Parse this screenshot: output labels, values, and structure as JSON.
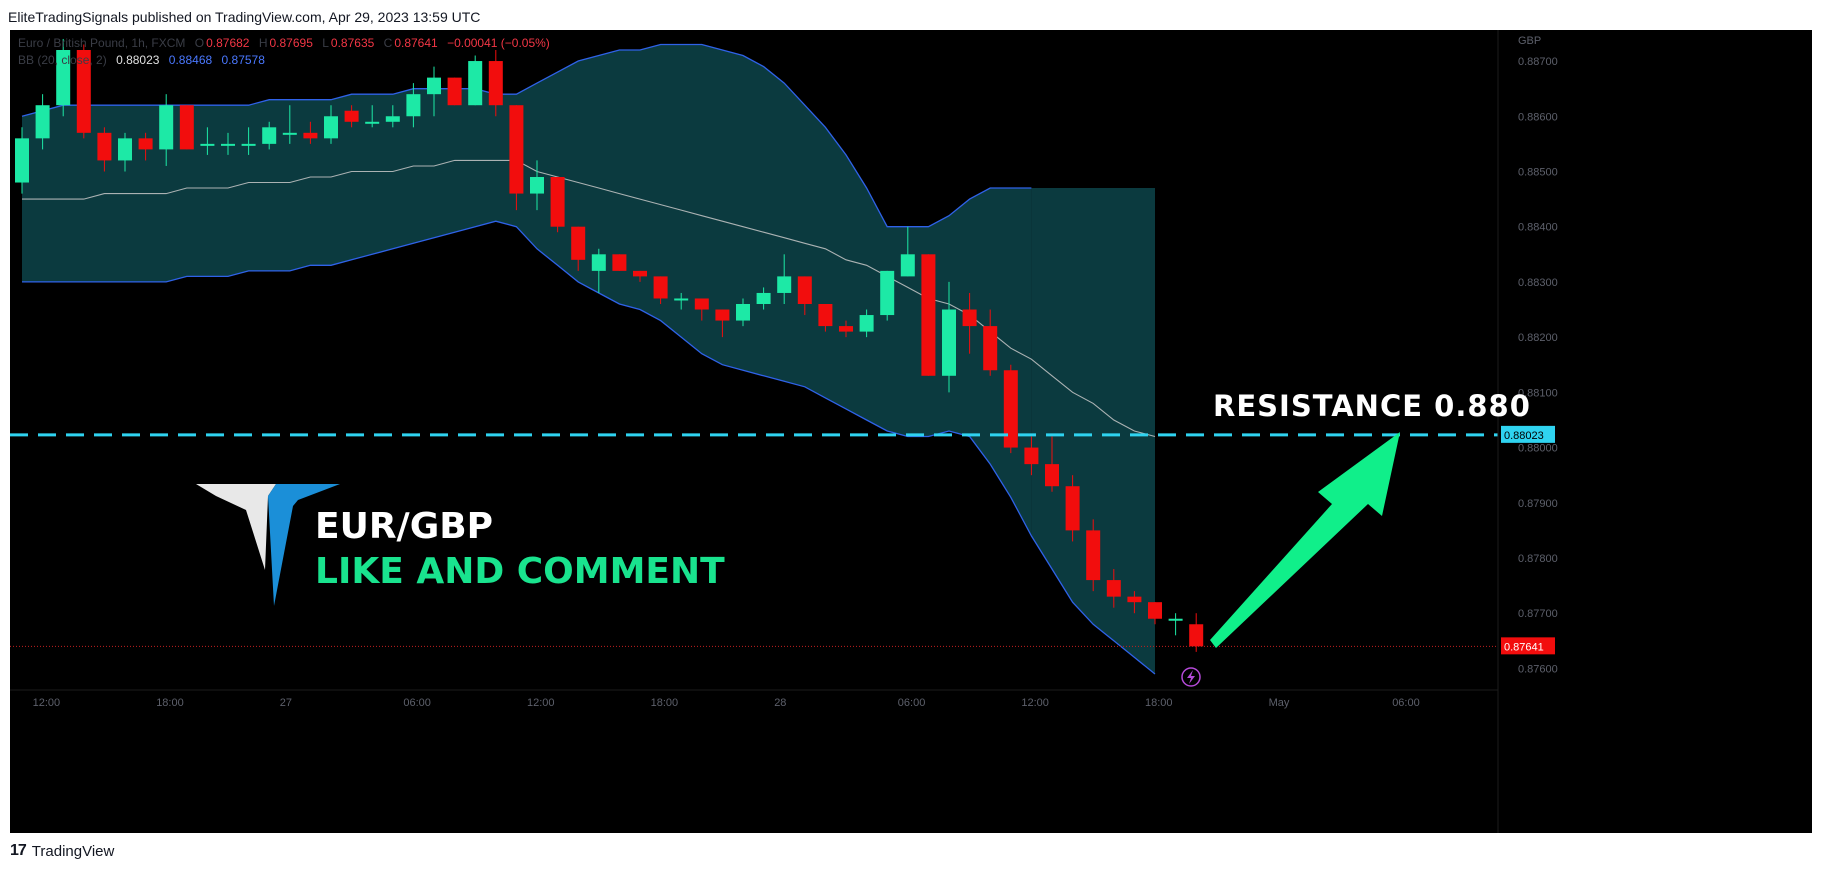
{
  "header": {
    "publisher_line": "EliteTradingSignals published on TradingView.com, Apr 29, 2023 13:59 UTC"
  },
  "footer": {
    "brand": "TradingView",
    "logo_mark": "17"
  },
  "legend": {
    "symbol": "Euro / British Pound, 1h, FXCM",
    "o_label": "O",
    "o": "0.87682",
    "h_label": "H",
    "h": "0.87695",
    "l_label": "L",
    "l": "0.87635",
    "c_label": "C",
    "c": "0.87641",
    "change": "−0.00041 (−0.05%)",
    "bb_label": "BB (20, close, 2)",
    "bb_basis": "0.88023",
    "bb_upper": "0.88468",
    "bb_lower": "0.87578"
  },
  "overlay": {
    "resistance_text": "RESISTANCE  0.880",
    "pair": "EUR/GBP",
    "cta": "LIKE AND COMMENT"
  },
  "colors": {
    "up": "#1de9a6",
    "down": "#f20d0d",
    "band_fill": "#0b3a3f",
    "band_line": "#2f62e8",
    "basis_line": "#c8c8c8",
    "resistance": "#2fd3f0",
    "arrow": "#10ef8a",
    "logo_white": "#e8e8e8",
    "logo_blue": "#1b8fd8",
    "cta": "#19e38e"
  },
  "chart_data": {
    "type": "candlestick",
    "currency": "GBP",
    "ylim": [
      0.8757,
      0.8872
    ],
    "y_ticks": [
      0.887,
      0.886,
      0.885,
      0.884,
      0.883,
      0.882,
      0.881,
      0.88,
      0.879,
      0.878,
      0.877,
      0.876
    ],
    "x_ticks": [
      {
        "label": "12:00",
        "i": 1
      },
      {
        "label": "18:00",
        "i": 7
      },
      {
        "label": "27",
        "i": 13
      },
      {
        "label": "06:00",
        "i": 19
      },
      {
        "label": "12:00",
        "i": 25
      },
      {
        "label": "18:00",
        "i": 31
      },
      {
        "label": "28",
        "i": 37
      },
      {
        "label": "06:00",
        "i": 43
      },
      {
        "label": "12:00",
        "i": 49
      },
      {
        "label": "18:00",
        "i": 55
      },
      {
        "label": "May",
        "i": 61
      },
      {
        "label": "06:00",
        "i": 67
      }
    ],
    "last_price": "0.87641",
    "resistance": {
      "value": 0.88023,
      "label": "0.88023"
    },
    "candles": [
      [
        0.8848,
        0.8858,
        0.8846,
        0.8856
      ],
      [
        0.8856,
        0.8864,
        0.8854,
        0.8862
      ],
      [
        0.8862,
        0.8874,
        0.886,
        0.8872
      ],
      [
        0.8872,
        0.8873,
        0.8856,
        0.8857
      ],
      [
        0.8857,
        0.8858,
        0.885,
        0.8852
      ],
      [
        0.8852,
        0.8857,
        0.885,
        0.8856
      ],
      [
        0.8856,
        0.8857,
        0.8852,
        0.8854
      ],
      [
        0.8854,
        0.8864,
        0.8851,
        0.8862
      ],
      [
        0.8862,
        0.8862,
        0.8854,
        0.8854
      ],
      [
        0.8855,
        0.8858,
        0.8853,
        0.8855
      ],
      [
        0.8855,
        0.8857,
        0.8853,
        0.8855
      ],
      [
        0.8855,
        0.8858,
        0.8853,
        0.8855
      ],
      [
        0.8855,
        0.8859,
        0.8854,
        0.8858
      ],
      [
        0.8857,
        0.8862,
        0.8855,
        0.8857
      ],
      [
        0.8857,
        0.8859,
        0.8855,
        0.8856
      ],
      [
        0.8856,
        0.8862,
        0.8855,
        0.886
      ],
      [
        0.8861,
        0.8862,
        0.8858,
        0.8859
      ],
      [
        0.8859,
        0.8862,
        0.8858,
        0.8859
      ],
      [
        0.8859,
        0.8862,
        0.8858,
        0.886
      ],
      [
        0.886,
        0.8866,
        0.8858,
        0.8864
      ],
      [
        0.8864,
        0.8869,
        0.886,
        0.8867
      ],
      [
        0.8867,
        0.8867,
        0.8862,
        0.8862
      ],
      [
        0.8862,
        0.8871,
        0.8862,
        0.887
      ],
      [
        0.887,
        0.8872,
        0.886,
        0.8862
      ],
      [
        0.8862,
        0.8862,
        0.8843,
        0.8846
      ],
      [
        0.8846,
        0.8852,
        0.8843,
        0.8849
      ],
      [
        0.8849,
        0.8849,
        0.8839,
        0.884
      ],
      [
        0.884,
        0.884,
        0.8832,
        0.8834
      ],
      [
        0.8832,
        0.8836,
        0.8828,
        0.8835
      ],
      [
        0.8835,
        0.8835,
        0.8832,
        0.8832
      ],
      [
        0.8832,
        0.8832,
        0.883,
        0.8831
      ],
      [
        0.8831,
        0.8831,
        0.8826,
        0.8827
      ],
      [
        0.8827,
        0.8828,
        0.8825,
        0.8827
      ],
      [
        0.8827,
        0.8827,
        0.8823,
        0.8825
      ],
      [
        0.8825,
        0.8825,
        0.882,
        0.8823
      ],
      [
        0.8823,
        0.8827,
        0.8822,
        0.8826
      ],
      [
        0.8826,
        0.8829,
        0.8825,
        0.8828
      ],
      [
        0.8828,
        0.8835,
        0.8826,
        0.8831
      ],
      [
        0.8831,
        0.8831,
        0.8824,
        0.8826
      ],
      [
        0.8826,
        0.8826,
        0.8821,
        0.8822
      ],
      [
        0.8822,
        0.8823,
        0.882,
        0.8821
      ],
      [
        0.8821,
        0.8825,
        0.882,
        0.8824
      ],
      [
        0.8824,
        0.8832,
        0.8823,
        0.8832
      ],
      [
        0.8831,
        0.884,
        0.8831,
        0.8835
      ],
      [
        0.8835,
        0.8835,
        0.8813,
        0.8813
      ],
      [
        0.8813,
        0.883,
        0.881,
        0.8825
      ],
      [
        0.8825,
        0.8828,
        0.8817,
        0.8822
      ],
      [
        0.8822,
        0.8825,
        0.8813,
        0.8814
      ],
      [
        0.8814,
        0.8815,
        0.8799,
        0.88
      ],
      [
        0.88,
        0.8802,
        0.8795,
        0.8797
      ],
      [
        0.8797,
        0.8802,
        0.8792,
        0.8793
      ],
      [
        0.8793,
        0.8795,
        0.8783,
        0.8785
      ],
      [
        0.8785,
        0.8787,
        0.8774,
        0.8776
      ],
      [
        0.8776,
        0.8778,
        0.8771,
        0.8773
      ],
      [
        0.8773,
        0.8774,
        0.877,
        0.8772
      ],
      [
        0.8772,
        0.8772,
        0.8768,
        0.8769
      ],
      [
        0.8769,
        0.877,
        0.8766,
        0.8769
      ],
      [
        0.8768,
        0.877,
        0.8763,
        0.8764
      ]
    ],
    "bb_upper": [
      0.886,
      0.8861,
      0.8862,
      0.8862,
      0.8862,
      0.8862,
      0.8862,
      0.8862,
      0.8862,
      0.8862,
      0.8862,
      0.8862,
      0.8863,
      0.8863,
      0.8863,
      0.8863,
      0.8864,
      0.8864,
      0.8864,
      0.8865,
      0.8865,
      0.8865,
      0.8865,
      0.8864,
      0.8864,
      0.8866,
      0.8868,
      0.887,
      0.8871,
      0.8872,
      0.8872,
      0.8873,
      0.8873,
      0.8873,
      0.8872,
      0.8871,
      0.8869,
      0.8866,
      0.8862,
      0.8858,
      0.8853,
      0.8847,
      0.884,
      0.884,
      0.884,
      0.8842,
      0.8845,
      0.8847,
      0.8847,
      0.8847
    ],
    "bb_basis": [
      0.8845,
      0.8845,
      0.8845,
      0.8845,
      0.8846,
      0.8846,
      0.8846,
      0.8846,
      0.8847,
      0.8847,
      0.8847,
      0.8848,
      0.8848,
      0.8848,
      0.8849,
      0.8849,
      0.885,
      0.885,
      0.885,
      0.8851,
      0.8851,
      0.8852,
      0.8852,
      0.8852,
      0.8852,
      0.885,
      0.8849,
      0.8848,
      0.8847,
      0.8846,
      0.8845,
      0.8844,
      0.8843,
      0.8842,
      0.8841,
      0.884,
      0.8839,
      0.8838,
      0.8837,
      0.8836,
      0.8834,
      0.8833,
      0.8831,
      0.8829,
      0.8827,
      0.8826,
      0.8824,
      0.8821,
      0.8818,
      0.8816,
      0.8813,
      0.881,
      0.8808,
      0.8805,
      0.8803,
      0.8802
    ],
    "bb_lower": [
      0.883,
      0.883,
      0.883,
      0.883,
      0.883,
      0.883,
      0.883,
      0.883,
      0.8831,
      0.8831,
      0.8831,
      0.8832,
      0.8832,
      0.8832,
      0.8833,
      0.8833,
      0.8834,
      0.8835,
      0.8836,
      0.8837,
      0.8838,
      0.8839,
      0.884,
      0.8841,
      0.884,
      0.8836,
      0.8833,
      0.883,
      0.8828,
      0.8826,
      0.8825,
      0.8823,
      0.882,
      0.8817,
      0.8815,
      0.8814,
      0.8813,
      0.8812,
      0.8811,
      0.8809,
      0.8807,
      0.8805,
      0.8803,
      0.8802,
      0.8802,
      0.8803,
      0.8802,
      0.8797,
      0.8791,
      0.8784,
      0.8778,
      0.8772,
      0.8768,
      0.8765,
      0.8762,
      0.8759
    ]
  }
}
